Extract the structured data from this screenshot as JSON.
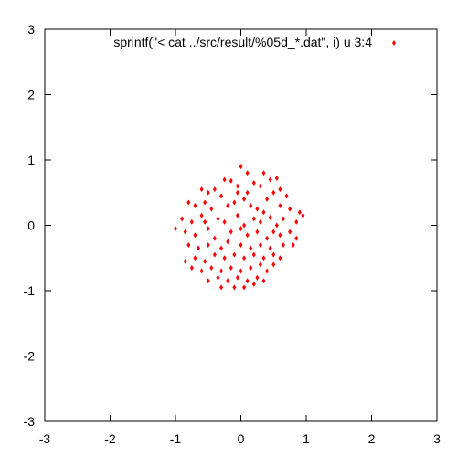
{
  "chart_data": {
    "type": "scatter",
    "title": "",
    "xlabel": "",
    "ylabel": "",
    "xlim": [
      -3,
      3
    ],
    "ylim": [
      -3,
      3
    ],
    "x_ticks": [
      -3,
      -2,
      -1,
      0,
      1,
      2,
      3
    ],
    "y_ticks": [
      -3,
      -2,
      -1,
      0,
      1,
      2,
      3
    ],
    "x_tick_labels": [
      "-3",
      "-2",
      "-1",
      "0",
      "1",
      "2",
      "3"
    ],
    "y_tick_labels": [
      "-3",
      "-2",
      "-1",
      "0",
      "1",
      "2",
      "3"
    ],
    "grid": false,
    "legend_position": "top-right",
    "series": [
      {
        "name": "sprintf(\"< cat ../src/result/%05d_*.dat\", i) u 3:4",
        "color": "#ff0000",
        "marker": "diamond",
        "points": [
          [
            0.0,
            0.9
          ],
          [
            0.1,
            0.8
          ],
          [
            0.35,
            0.8
          ],
          [
            0.45,
            0.7
          ],
          [
            0.55,
            0.72
          ],
          [
            -0.25,
            0.7
          ],
          [
            -0.15,
            0.68
          ],
          [
            -0.05,
            0.6
          ],
          [
            0.2,
            0.65
          ],
          [
            0.3,
            0.6
          ],
          [
            -0.6,
            0.55
          ],
          [
            -0.5,
            0.5
          ],
          [
            -0.4,
            0.55
          ],
          [
            -0.3,
            0.45
          ],
          [
            0.6,
            0.55
          ],
          [
            0.7,
            0.45
          ],
          [
            0.5,
            0.5
          ],
          [
            0.4,
            0.4
          ],
          [
            -0.8,
            0.35
          ],
          [
            -0.7,
            0.3
          ],
          [
            -0.55,
            0.35
          ],
          [
            -0.45,
            0.25
          ],
          [
            -0.2,
            0.3
          ],
          [
            -0.1,
            0.35
          ],
          [
            0.05,
            0.4
          ],
          [
            0.15,
            0.3
          ],
          [
            0.25,
            0.25
          ],
          [
            0.35,
            0.2
          ],
          [
            0.6,
            0.3
          ],
          [
            0.75,
            0.25
          ],
          [
            0.9,
            0.2
          ],
          [
            0.95,
            0.15
          ],
          [
            -0.9,
            0.1
          ],
          [
            -0.75,
            0.05
          ],
          [
            -0.6,
            0.15
          ],
          [
            -0.35,
            0.1
          ],
          [
            -0.25,
            0.05
          ],
          [
            -0.05,
            0.15
          ],
          [
            0.05,
            0.0
          ],
          [
            0.2,
            0.1
          ],
          [
            0.3,
            0.05
          ],
          [
            0.45,
            0.12
          ],
          [
            0.55,
            0.0
          ],
          [
            0.85,
            0.05
          ],
          [
            -1.0,
            -0.05
          ],
          [
            -0.85,
            -0.1
          ],
          [
            -0.7,
            -0.15
          ],
          [
            -0.5,
            -0.05
          ],
          [
            -0.4,
            -0.2
          ],
          [
            -0.15,
            -0.1
          ],
          [
            0.0,
            -0.05
          ],
          [
            0.1,
            -0.15
          ],
          [
            0.25,
            -0.1
          ],
          [
            0.4,
            -0.2
          ],
          [
            0.5,
            -0.1
          ],
          [
            0.6,
            -0.15
          ],
          [
            0.75,
            -0.1
          ],
          [
            0.85,
            -0.2
          ],
          [
            -0.8,
            -0.3
          ],
          [
            -0.65,
            -0.35
          ],
          [
            -0.5,
            -0.3
          ],
          [
            -0.3,
            -0.35
          ],
          [
            -0.2,
            -0.25
          ],
          [
            0.0,
            -0.3
          ],
          [
            0.15,
            -0.35
          ],
          [
            0.3,
            -0.3
          ],
          [
            0.45,
            -0.35
          ],
          [
            0.65,
            -0.3
          ],
          [
            0.8,
            -0.3
          ],
          [
            -0.85,
            -0.55
          ],
          [
            -0.7,
            -0.5
          ],
          [
            -0.55,
            -0.55
          ],
          [
            -0.4,
            -0.45
          ],
          [
            -0.25,
            -0.5
          ],
          [
            -0.1,
            -0.45
          ],
          [
            0.05,
            -0.5
          ],
          [
            0.2,
            -0.45
          ],
          [
            0.35,
            -0.5
          ],
          [
            0.5,
            -0.45
          ],
          [
            0.6,
            -0.5
          ],
          [
            -0.75,
            -0.65
          ],
          [
            -0.6,
            -0.7
          ],
          [
            -0.45,
            -0.65
          ],
          [
            -0.3,
            -0.7
          ],
          [
            -0.15,
            -0.65
          ],
          [
            0.0,
            -0.7
          ],
          [
            0.15,
            -0.65
          ],
          [
            0.3,
            -0.6
          ],
          [
            0.4,
            -0.7
          ],
          [
            0.5,
            -0.6
          ],
          [
            -0.5,
            -0.85
          ],
          [
            -0.35,
            -0.8
          ],
          [
            -0.2,
            -0.85
          ],
          [
            -0.05,
            -0.8
          ],
          [
            0.1,
            -0.85
          ],
          [
            0.25,
            -0.8
          ],
          [
            0.35,
            -0.85
          ],
          [
            -0.3,
            -0.95
          ],
          [
            -0.1,
            -0.95
          ],
          [
            0.05,
            -0.95
          ],
          [
            0.2,
            -0.9
          ],
          [
            -0.55,
            0.05
          ],
          [
            0.65,
            0.1
          ],
          [
            0.1,
            0.5
          ],
          [
            -0.05,
            0.5
          ]
        ]
      }
    ]
  }
}
